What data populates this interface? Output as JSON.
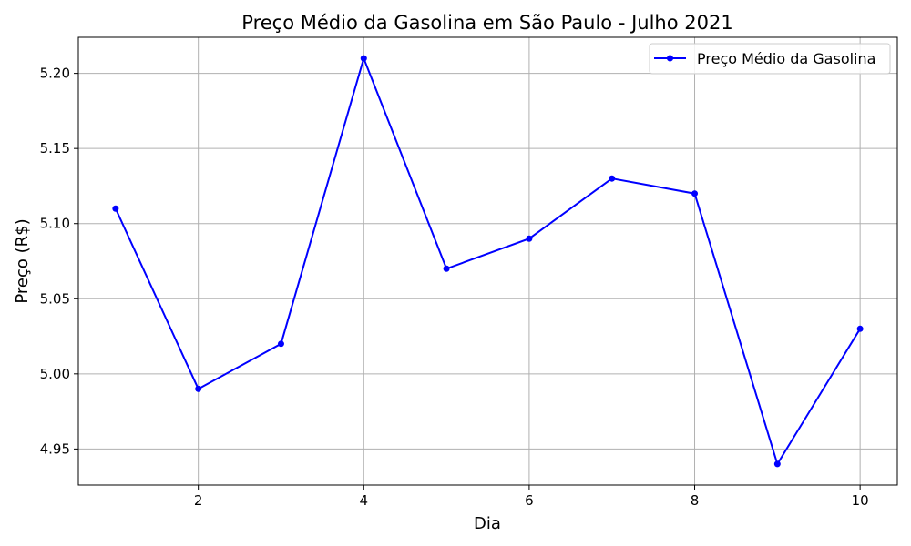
{
  "chart_data": {
    "type": "line",
    "title": "Preço Médio da Gasolina em São Paulo - Julho 2021",
    "xlabel": "Dia",
    "ylabel": "Preço (R$)",
    "x": [
      1,
      2,
      3,
      4,
      5,
      6,
      7,
      8,
      9,
      10
    ],
    "series": [
      {
        "name": "Preço Médio da Gasolina",
        "values": [
          5.11,
          4.99,
          5.02,
          5.21,
          5.07,
          5.09,
          5.13,
          5.12,
          4.94,
          5.03
        ],
        "color": "#0000ff"
      }
    ],
    "xlim": [
      0.55,
      10.45
    ],
    "ylim": [
      4.926,
      5.224
    ],
    "xticks": [
      2,
      4,
      6,
      8,
      10
    ],
    "xtick_labels": [
      "2",
      "4",
      "6",
      "8",
      "10"
    ],
    "yticks": [
      4.95,
      5.0,
      5.05,
      5.1,
      5.15,
      5.2
    ],
    "ytick_labels": [
      "4.95",
      "5.00",
      "5.05",
      "5.10",
      "5.15",
      "5.20"
    ],
    "grid": true,
    "legend_position": "top-right"
  }
}
